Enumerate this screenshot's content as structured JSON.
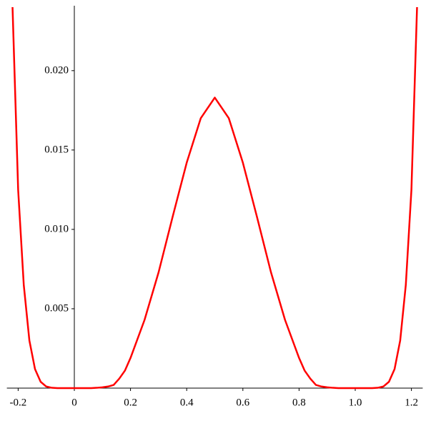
{
  "chart_data": {
    "type": "line",
    "x": [
      -0.22,
      -0.2,
      -0.18,
      -0.16,
      -0.14,
      -0.12,
      -0.1,
      -0.08,
      -0.06,
      0,
      0.06,
      0.08,
      0.1,
      0.12,
      0.14,
      0.16,
      0.18,
      0.2,
      0.25,
      0.3,
      0.35,
      0.4,
      0.45,
      0.5,
      0.55,
      0.6,
      0.65,
      0.7,
      0.75,
      0.8,
      0.82,
      0.84,
      0.86,
      0.88,
      0.9,
      0.92,
      0.94,
      1,
      1.06,
      1.08,
      1.1,
      1.12,
      1.14,
      1.16,
      1.18,
      1.2,
      1.22
    ],
    "series": [
      {
        "color": "#ff0000",
        "values": [
          0.024,
          0.0125,
          0.0065,
          0.003,
          0.0012,
          0.0004,
          0.0001,
          2e-05,
          0,
          0,
          0,
          2e-05,
          5e-05,
          0.0001,
          0.0002,
          0.0006,
          0.0011,
          0.0019,
          0.0043,
          0.0073,
          0.0108,
          0.0142,
          0.017,
          0.0183,
          0.017,
          0.0142,
          0.0108,
          0.0073,
          0.0043,
          0.0019,
          0.0011,
          0.0006,
          0.0002,
          0.0001,
          5e-05,
          2e-05,
          0,
          0,
          0,
          2e-05,
          0.0001,
          0.0004,
          0.0012,
          0.003,
          0.0065,
          0.0125,
          0.024
        ]
      }
    ],
    "xlim": [
      -0.23,
      1.23
    ],
    "ylim": [
      0,
      0.024
    ],
    "xticks": [
      -0.2,
      0,
      0.2,
      0.4,
      0.6,
      0.8,
      {
        "value": 1,
        "label": "1.0"
      },
      1.2
    ],
    "yticks": [
      0.005,
      {
        "value": 0.01,
        "label": "0.010"
      },
      0.015,
      {
        "value": 0.02,
        "label": "0.020"
      }
    ]
  }
}
